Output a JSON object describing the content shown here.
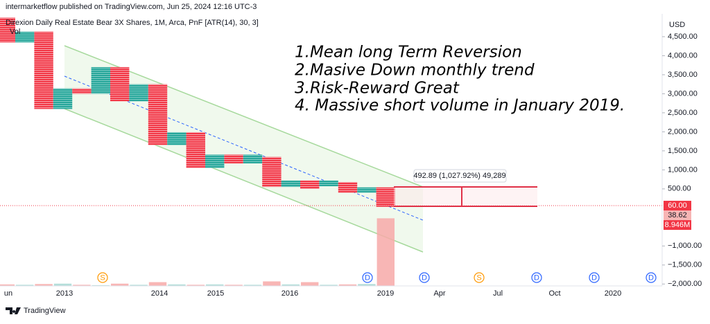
{
  "header": {
    "published": "intermarketflow published on TradingView.com, Jun 25, 2024 12:16 UTC-3",
    "symbol": "Direxion Daily Real Estate Bear 3X Shares, 1M, Arca, PnF [ATR(14), 30, 3]",
    "volume_legend": "Vol"
  },
  "annotations": [
    "1.Mean long Term Reversion",
    "2.Masive Down monthly trend",
    "3.Risk-Reward Great",
    "4. Massive short volume in January 2019."
  ],
  "measure_label": "492.89 (1,027.92%) 49,289",
  "currency": "USD",
  "events": [
    "S",
    "D",
    "D",
    "S",
    "D",
    "D",
    "D"
  ],
  "badges": [
    "38.62"
  ],
  "footer": "TradingView",
  "chart_data": {
    "type": "pnf",
    "up_color": "#26a69a",
    "down_color": "#f23645",
    "ylim": [
      -2050,
      5100
    ],
    "yticks": [
      {
        "value": 4500,
        "label": "4,500.00"
      },
      {
        "value": 4000,
        "label": "4,000.00"
      },
      {
        "value": 3500,
        "label": "3,500.00"
      },
      {
        "value": 3000,
        "label": "3,000.00"
      },
      {
        "value": 2500,
        "label": "2,500.00"
      },
      {
        "value": 2000,
        "label": "2,000.00"
      },
      {
        "value": 1500,
        "label": "1,500.00"
      },
      {
        "value": 1000,
        "label": "1,000.00"
      },
      {
        "value": 500,
        "label": "500.00"
      },
      {
        "value": -1000,
        "label": "−1,000.00"
      },
      {
        "value": -1500,
        "label": "−1,500.00"
      },
      {
        "value": -2000,
        "label": "−2,000.00"
      }
    ],
    "last_price": {
      "value": 60,
      "label": "60.00"
    },
    "x_labels": [
      "un",
      "2013",
      "2014",
      "2015",
      "2016",
      "2019",
      "Apr",
      "Jul",
      "Oct",
      "2020"
    ],
    "columns": [
      {
        "direction": "down",
        "high": 5000,
        "low": 4350
      },
      {
        "direction": "up",
        "high": 4630,
        "low": 4350
      },
      {
        "direction": "down",
        "high": 4630,
        "low": 2600
      },
      {
        "direction": "up",
        "high": 3140,
        "low": 2600
      },
      {
        "direction": "down",
        "high": 3140,
        "low": 3000
      },
      {
        "direction": "up",
        "high": 3700,
        "low": 3000
      },
      {
        "direction": "down",
        "high": 3700,
        "low": 2800
      },
      {
        "direction": "up",
        "high": 3250,
        "low": 2800
      },
      {
        "direction": "down",
        "high": 3250,
        "low": 1650
      },
      {
        "direction": "up",
        "high": 1990,
        "low": 1650
      },
      {
        "direction": "down",
        "high": 1990,
        "low": 1050
      },
      {
        "direction": "up",
        "high": 1400,
        "low": 1050
      },
      {
        "direction": "down",
        "high": 1400,
        "low": 1170
      },
      {
        "direction": "up",
        "high": 1400,
        "low": 1170
      },
      {
        "direction": "down",
        "high": 1340,
        "low": 550
      },
      {
        "direction": "up",
        "high": 720,
        "low": 550
      },
      {
        "direction": "down",
        "high": 720,
        "low": 500
      },
      {
        "direction": "up",
        "high": 720,
        "low": 570
      },
      {
        "direction": "down",
        "high": 680,
        "low": 400
      },
      {
        "direction": "up",
        "high": 540,
        "low": 400
      },
      {
        "direction": "down",
        "high": 540,
        "low": 30
      }
    ],
    "volume": {
      "ylim": [
        0,
        36000000
      ],
      "up_color": "#a7d8d2",
      "down_color": "#f7a9a8",
      "values": [
        200000,
        150000,
        250000,
        300000,
        150000,
        100000,
        300000,
        150000,
        500000,
        200000,
        150000,
        200000,
        150000,
        150000,
        600000,
        200000,
        500000,
        150000,
        200000,
        250000,
        8946000
      ],
      "value_labels": {
        "20": "8.946M"
      }
    }
  }
}
